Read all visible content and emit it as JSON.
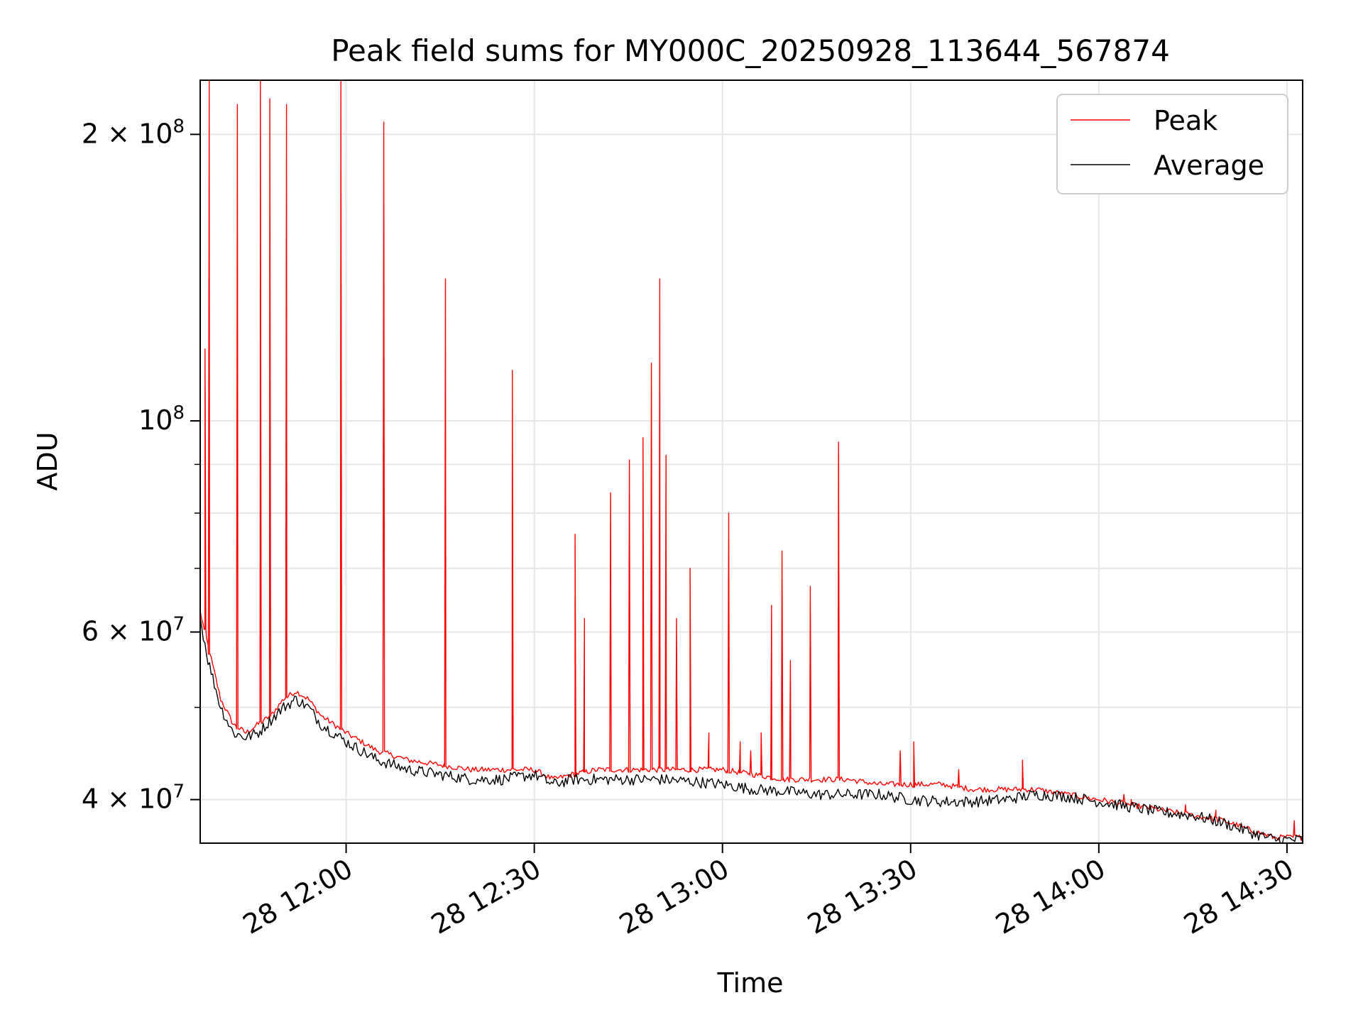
{
  "chart_data": {
    "type": "line",
    "title": "Peak field sums for MY000C_20250928_113644_567874",
    "xlabel": "Time",
    "ylabel": "ADU",
    "x_unit": "time of day (28 Sep 2025)",
    "xlim": [
      "11:36:44",
      "14:32:30"
    ],
    "ylim": [
      36000000,
      228000000
    ],
    "y_scale": "log",
    "grid": true,
    "legend_position": "top-right",
    "x_ticks": [
      {
        "label": "28 12:00",
        "t": "12:00"
      },
      {
        "label": "28 12:30",
        "t": "12:30"
      },
      {
        "label": "28 13:00",
        "t": "13:00"
      },
      {
        "label": "28 13:30",
        "t": "13:30"
      },
      {
        "label": "28 14:00",
        "t": "14:00"
      },
      {
        "label": "28 14:30",
        "t": "14:30"
      }
    ],
    "y_ticks": [
      {
        "value": 40000000,
        "mant": "4",
        "exp": "7"
      },
      {
        "value": 60000000,
        "mant": "6",
        "exp": "7"
      },
      {
        "value": 100000000,
        "mant": "",
        "exp": "8"
      },
      {
        "value": 200000000,
        "mant": "2",
        "exp": "8"
      }
    ],
    "series": [
      {
        "name": "Peak",
        "color": "#ff0000",
        "x": [
          "11:36:44",
          "11:38",
          "11:40",
          "11:42",
          "11:44",
          "11:46",
          "11:48",
          "11:50",
          "11:52",
          "11:54",
          "11:56",
          "11:58",
          "12:00",
          "12:05",
          "12:10",
          "12:15",
          "12:20",
          "12:25",
          "12:30",
          "12:33",
          "12:36",
          "12:40",
          "12:45",
          "12:50",
          "12:55",
          "13:00",
          "13:05",
          "13:10",
          "13:15",
          "13:20",
          "13:25",
          "13:30",
          "13:35",
          "13:40",
          "13:45",
          "13:50",
          "13:55",
          "14:00",
          "14:05",
          "14:10",
          "14:15",
          "14:20",
          "14:25",
          "14:28",
          "14:30",
          "14:32:30"
        ],
        "values": [
          63000000,
          58000000,
          51000000,
          48000000,
          47000000,
          48000000,
          49000000,
          51000000,
          52000000,
          51000000,
          49000000,
          48000000,
          47000000,
          45000000,
          44000000,
          43500000,
          43000000,
          43000000,
          43000000,
          42000000,
          42500000,
          43000000,
          43000000,
          43000000,
          43000000,
          43000000,
          42500000,
          42000000,
          42000000,
          42000000,
          41500000,
          41500000,
          41500000,
          41000000,
          41000000,
          41000000,
          40500000,
          40000000,
          39500000,
          39000000,
          38500000,
          38000000,
          37000000,
          36500000,
          36500000,
          36500000
        ]
      },
      {
        "name": "Average",
        "color": "#000000",
        "x": [
          "11:36:44",
          "11:38",
          "11:40",
          "11:42",
          "11:44",
          "11:46",
          "11:48",
          "11:50",
          "11:52",
          "11:54",
          "11:56",
          "11:58",
          "12:00",
          "12:05",
          "12:10",
          "12:15",
          "12:20",
          "12:25",
          "12:30",
          "12:33",
          "12:36",
          "12:40",
          "12:45",
          "12:50",
          "12:55",
          "13:00",
          "13:05",
          "13:10",
          "13:15",
          "13:20",
          "13:25",
          "13:30",
          "13:35",
          "13:40",
          "13:45",
          "13:50",
          "13:55",
          "14:00",
          "14:05",
          "14:10",
          "14:15",
          "14:20",
          "14:25",
          "14:28",
          "14:30",
          "14:32:30"
        ],
        "values": [
          62000000,
          56000000,
          50000000,
          47000000,
          46500000,
          47000000,
          48500000,
          50000000,
          51000000,
          50000000,
          48000000,
          47000000,
          46000000,
          44000000,
          43000000,
          42500000,
          42000000,
          42000000,
          42500000,
          41500000,
          42000000,
          42000000,
          42000000,
          42000000,
          41800000,
          41500000,
          41000000,
          40800000,
          40500000,
          40500000,
          40500000,
          40000000,
          39800000,
          39800000,
          40000000,
          40500000,
          40300000,
          39800000,
          39300000,
          38800000,
          38500000,
          37800000,
          36800000,
          36300000,
          36300000,
          36300000
        ]
      }
    ],
    "spikes": [
      {
        "t": "11:37:30",
        "value": 119000000
      },
      {
        "t": "11:38:10",
        "value": 228000000
      },
      {
        "t": "11:42:40",
        "value": 215000000
      },
      {
        "t": "11:46:20",
        "value": 228000000
      },
      {
        "t": "11:47:50",
        "value": 218000000
      },
      {
        "t": "11:50:30",
        "value": 215000000
      },
      {
        "t": "11:59:10",
        "value": 228000000
      },
      {
        "t": "12:06:00",
        "value": 206000000
      },
      {
        "t": "12:15:50",
        "value": 141000000
      },
      {
        "t": "12:26:30",
        "value": 113000000
      },
      {
        "t": "12:36:30",
        "value": 76000000
      },
      {
        "t": "12:38:00",
        "value": 62000000
      },
      {
        "t": "12:42:10",
        "value": 84000000
      },
      {
        "t": "12:45:10",
        "value": 91000000
      },
      {
        "t": "12:47:20",
        "value": 96000000
      },
      {
        "t": "12:48:40",
        "value": 115000000
      },
      {
        "t": "12:50:00",
        "value": 141000000
      },
      {
        "t": "12:51:00",
        "value": 92000000
      },
      {
        "t": "12:52:40",
        "value": 62000000
      },
      {
        "t": "12:54:50",
        "value": 70000000
      },
      {
        "t": "12:57:50",
        "value": 47000000
      },
      {
        "t": "13:01:00",
        "value": 80000000
      },
      {
        "t": "13:02:50",
        "value": 46000000
      },
      {
        "t": "13:04:30",
        "value": 45000000
      },
      {
        "t": "13:06:10",
        "value": 47000000
      },
      {
        "t": "13:07:50",
        "value": 64000000
      },
      {
        "t": "13:09:30",
        "value": 73000000
      },
      {
        "t": "13:10:50",
        "value": 56000000
      },
      {
        "t": "13:14:00",
        "value": 67000000
      },
      {
        "t": "13:18:30",
        "value": 95000000
      },
      {
        "t": "13:28:20",
        "value": 45000000
      },
      {
        "t": "13:30:30",
        "value": 46000000
      },
      {
        "t": "13:37:40",
        "value": 43000000
      },
      {
        "t": "13:47:50",
        "value": 44000000
      },
      {
        "t": "14:04:00",
        "value": 40500000
      },
      {
        "t": "14:05:10",
        "value": 40000000
      },
      {
        "t": "14:13:50",
        "value": 39500000
      },
      {
        "t": "14:18:40",
        "value": 39000000
      },
      {
        "t": "14:31:10",
        "value": 38000000
      }
    ]
  }
}
